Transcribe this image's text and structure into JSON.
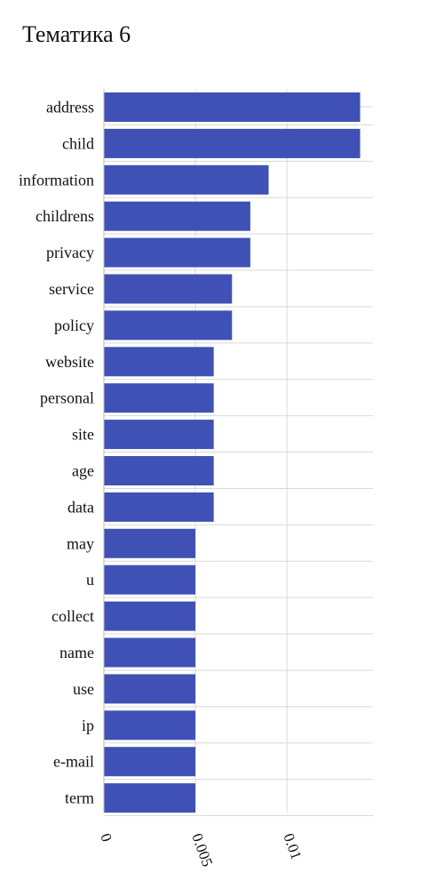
{
  "chart_data": {
    "type": "bar",
    "orientation": "horizontal",
    "title": "Тематика 6",
    "categories": [
      "address",
      "child",
      "information",
      "childrens",
      "privacy",
      "service",
      "policy",
      "website",
      "personal",
      "site",
      "age",
      "data",
      "may",
      "u",
      "collect",
      "name",
      "use",
      "ip",
      "e-mail",
      "term"
    ],
    "values": [
      0.014,
      0.014,
      0.009,
      0.008,
      0.008,
      0.007,
      0.007,
      0.006,
      0.006,
      0.006,
      0.006,
      0.006,
      0.005,
      0.005,
      0.005,
      0.005,
      0.005,
      0.005,
      0.005,
      0.005
    ],
    "xlim": [
      0,
      0.0147
    ],
    "xticks": [
      0,
      0.005,
      0.01
    ],
    "xtick_labels": [
      "0",
      "0.005",
      "0.01"
    ],
    "grid": true,
    "bar_color": "#3f51b5",
    "grid_color": "#d9d9d9"
  }
}
